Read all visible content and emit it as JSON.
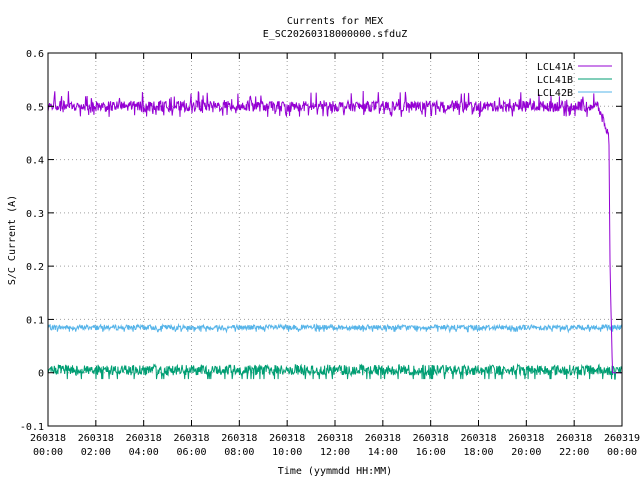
{
  "chart_data": {
    "type": "line",
    "title": "Currents for MEX",
    "subtitle": "E_SC20260318000000.sfduZ",
    "xlabel": "Time (yymmdd HH:MM)",
    "ylabel": "S/C Current (A)",
    "ylim": [
      -0.1,
      0.6
    ],
    "xlim_hours": [
      0,
      24
    ],
    "grid": true,
    "legend_position": "top-right",
    "y_ticks": [
      "-0.1",
      "0",
      "0.1",
      "0.2",
      "0.3",
      "0.4",
      "0.5",
      "0.6"
    ],
    "x_ticks": [
      {
        "date": "260318",
        "time": "00:00"
      },
      {
        "date": "260318",
        "time": "02:00"
      },
      {
        "date": "260318",
        "time": "04:00"
      },
      {
        "date": "260318",
        "time": "06:00"
      },
      {
        "date": "260318",
        "time": "08:00"
      },
      {
        "date": "260318",
        "time": "10:00"
      },
      {
        "date": "260318",
        "time": "12:00"
      },
      {
        "date": "260318",
        "time": "14:00"
      },
      {
        "date": "260318",
        "time": "16:00"
      },
      {
        "date": "260318",
        "time": "18:00"
      },
      {
        "date": "260318",
        "time": "20:00"
      },
      {
        "date": "260318",
        "time": "22:00"
      },
      {
        "date": "260319",
        "time": "00:00"
      }
    ],
    "series": [
      {
        "name": "LCL41A",
        "color": "#9400d3",
        "x_hours": [
          0,
          1,
          2,
          3,
          4,
          5,
          6,
          7,
          8,
          9,
          10,
          11,
          12,
          13,
          14,
          15,
          16,
          17,
          18,
          19,
          20,
          21,
          22,
          23,
          23.4,
          23.45,
          23.5,
          23.6,
          23.7,
          24
        ],
        "values": [
          0.5,
          0.5,
          0.5,
          0.5,
          0.5,
          0.5,
          0.5,
          0.5,
          0.5,
          0.5,
          0.5,
          0.5,
          0.5,
          0.5,
          0.5,
          0.5,
          0.5,
          0.5,
          0.5,
          0.5,
          0.5,
          0.5,
          0.5,
          0.5,
          0.45,
          0.45,
          0.2,
          0.0,
          0.0,
          0.0
        ],
        "noise_band": [
          0.49,
          0.51
        ]
      },
      {
        "name": "LCL41B",
        "color": "#009e73",
        "x_hours": [
          0,
          24
        ],
        "values": [
          0.005,
          0.005
        ],
        "noise_band": [
          -0.01,
          0.01
        ]
      },
      {
        "name": "LCL42B",
        "color": "#56b4e9",
        "x_hours": [
          0,
          24
        ],
        "values": [
          0.085,
          0.085
        ],
        "noise_band": [
          0.08,
          0.09
        ]
      }
    ]
  }
}
